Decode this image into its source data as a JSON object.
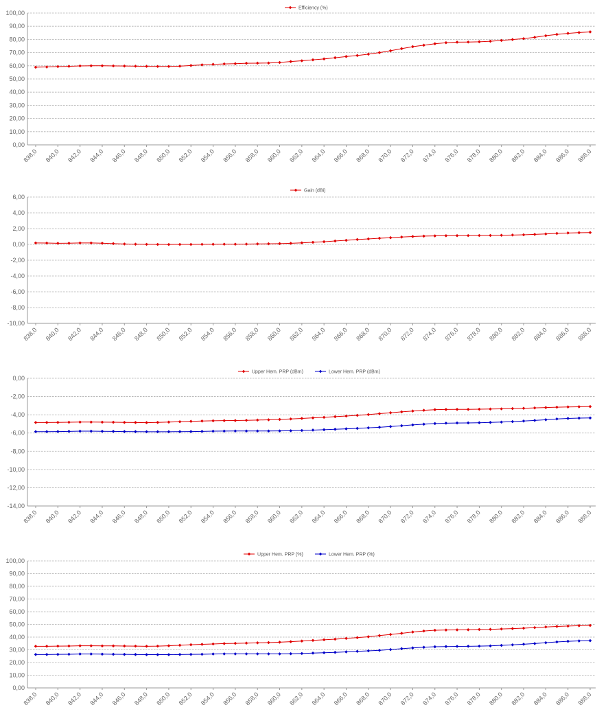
{
  "charts": {
    "chart_1": {
      "legend": [
        "Efficiency (%)"
      ]
    },
    "chart_2": {
      "legend": [
        "Gain (dBi)"
      ]
    },
    "chart_3": {
      "legend": [
        "Upper Hem. PRP (dBm)",
        "Lower Hem. PRP (dBm)"
      ]
    },
    "chart_4": {
      "legend": [
        "Upper Hem. PRP (%)",
        "Lower Hem. PRP (%)"
      ]
    }
  },
  "colors": {
    "red": "#e00000",
    "blue": "#0000c8"
  },
  "chart_data": [
    {
      "type": "line",
      "title": "",
      "x_tick_labels": [
        "838,0",
        "840,0",
        "842,0",
        "844,0",
        "846,0",
        "848,0",
        "850,0",
        "852,0",
        "854,0",
        "856,0",
        "858,0",
        "860,0",
        "862,0",
        "864,0",
        "866,0",
        "868,0",
        "870,0",
        "872,0",
        "874,0",
        "876,0",
        "878,0",
        "880,0",
        "882,0",
        "884,0",
        "886,0",
        "888,0"
      ],
      "y_tick_labels": [
        "0,00",
        "10,00",
        "20,00",
        "30,00",
        "40,00",
        "50,00",
        "60,00",
        "70,00",
        "80,00",
        "90,00",
        "100,00"
      ],
      "ylim": [
        0,
        100
      ],
      "xlim": [
        838,
        888
      ],
      "grid": true,
      "legend_position": "top-center",
      "x": [
        838,
        839,
        840,
        841,
        842,
        843,
        844,
        845,
        846,
        847,
        848,
        849,
        850,
        851,
        852,
        853,
        854,
        855,
        856,
        857,
        858,
        859,
        860,
        861,
        862,
        863,
        864,
        865,
        866,
        867,
        868,
        869,
        870,
        871,
        872,
        873,
        874,
        875,
        876,
        877,
        878,
        879,
        880,
        881,
        882,
        883,
        884,
        885,
        886,
        887,
        888
      ],
      "series": [
        {
          "name": "Efficiency (%)",
          "color": "red",
          "values": [
            58.9,
            59.1,
            59.4,
            59.6,
            59.9,
            60.0,
            60.0,
            59.9,
            59.8,
            59.7,
            59.6,
            59.5,
            59.5,
            59.7,
            60.2,
            60.7,
            61.1,
            61.4,
            61.6,
            61.9,
            62.0,
            62.1,
            62.5,
            63.2,
            63.8,
            64.5,
            65.2,
            66.1,
            67.0,
            67.8,
            68.8,
            70.0,
            71.4,
            73.0,
            74.5,
            75.6,
            76.7,
            77.5,
            77.9,
            78.0,
            78.2,
            78.6,
            79.2,
            79.9,
            80.6,
            81.6,
            82.8,
            83.8,
            84.6,
            85.2,
            85.7
          ]
        }
      ]
    },
    {
      "type": "line",
      "title": "",
      "x_tick_labels": [
        "838,0",
        "840,0",
        "842,0",
        "844,0",
        "846,0",
        "848,0",
        "850,0",
        "852,0",
        "854,0",
        "856,0",
        "858,0",
        "860,0",
        "862,0",
        "864,0",
        "866,0",
        "868,0",
        "870,0",
        "872,0",
        "874,0",
        "876,0",
        "878,0",
        "880,0",
        "882,0",
        "884,0",
        "886,0",
        "888,0"
      ],
      "y_tick_labels": [
        "-10,00",
        "-8,00",
        "-6,00",
        "-4,00",
        "-2,00",
        "0,00",
        "2,00",
        "4,00",
        "6,00"
      ],
      "ylim": [
        -10,
        6
      ],
      "xlim": [
        838,
        888
      ],
      "grid": true,
      "legend_position": "top-center",
      "x": [
        838,
        839,
        840,
        841,
        842,
        843,
        844,
        845,
        846,
        847,
        848,
        849,
        850,
        851,
        852,
        853,
        854,
        855,
        856,
        857,
        858,
        859,
        860,
        861,
        862,
        863,
        864,
        865,
        866,
        867,
        868,
        869,
        870,
        871,
        872,
        873,
        874,
        875,
        876,
        877,
        878,
        879,
        880,
        881,
        882,
        883,
        884,
        885,
        886,
        887,
        888
      ],
      "series": [
        {
          "name": "Gain (dBi)",
          "color": "red",
          "values": [
            0.18,
            0.17,
            0.14,
            0.15,
            0.18,
            0.18,
            0.15,
            0.1,
            0.05,
            0.03,
            0.01,
            0.0,
            -0.01,
            0.0,
            0.0,
            0.01,
            0.02,
            0.03,
            0.03,
            0.04,
            0.06,
            0.08,
            0.1,
            0.14,
            0.2,
            0.27,
            0.34,
            0.43,
            0.52,
            0.62,
            0.7,
            0.78,
            0.85,
            0.93,
            1.0,
            1.05,
            1.08,
            1.1,
            1.11,
            1.12,
            1.13,
            1.14,
            1.16,
            1.19,
            1.22,
            1.27,
            1.33,
            1.4,
            1.45,
            1.48,
            1.5
          ]
        }
      ]
    },
    {
      "type": "line",
      "title": "",
      "x_tick_labels": [
        "838,0",
        "840,0",
        "842,0",
        "844,0",
        "846,0",
        "848,0",
        "850,0",
        "852,0",
        "854,0",
        "856,0",
        "858,0",
        "860,0",
        "862,0",
        "864,0",
        "866,0",
        "868,0",
        "870,0",
        "872,0",
        "874,0",
        "876,0",
        "878,0",
        "880,0",
        "882,0",
        "884,0",
        "886,0",
        "888,0"
      ],
      "y_tick_labels": [
        "-14,00",
        "-12,00",
        "-10,00",
        "-8,00",
        "-6,00",
        "-4,00",
        "-2,00",
        "0,00"
      ],
      "ylim": [
        -14,
        0
      ],
      "xlim": [
        838,
        888
      ],
      "grid": true,
      "legend_position": "top-center",
      "x": [
        838,
        839,
        840,
        841,
        842,
        843,
        844,
        845,
        846,
        847,
        848,
        849,
        850,
        851,
        852,
        853,
        854,
        855,
        856,
        857,
        858,
        859,
        860,
        861,
        862,
        863,
        864,
        865,
        866,
        867,
        868,
        869,
        870,
        871,
        872,
        873,
        874,
        875,
        876,
        877,
        878,
        879,
        880,
        881,
        882,
        883,
        884,
        885,
        886,
        887,
        888
      ],
      "series": [
        {
          "name": "Upper Hem. PRP (dBm)",
          "color": "red",
          "values": [
            -4.85,
            -4.85,
            -4.84,
            -4.82,
            -4.8,
            -4.8,
            -4.81,
            -4.82,
            -4.84,
            -4.85,
            -4.86,
            -4.84,
            -4.8,
            -4.76,
            -4.72,
            -4.69,
            -4.66,
            -4.64,
            -4.63,
            -4.61,
            -4.58,
            -4.55,
            -4.51,
            -4.46,
            -4.4,
            -4.34,
            -4.28,
            -4.21,
            -4.14,
            -4.06,
            -3.98,
            -3.88,
            -3.78,
            -3.68,
            -3.59,
            -3.51,
            -3.44,
            -3.42,
            -3.41,
            -3.41,
            -3.39,
            -3.37,
            -3.35,
            -3.32,
            -3.29,
            -3.25,
            -3.21,
            -3.17,
            -3.14,
            -3.12,
            -3.1
          ]
        },
        {
          "name": "Lower Hem. PRP (dBm)",
          "color": "blue",
          "values": [
            -5.85,
            -5.85,
            -5.84,
            -5.82,
            -5.8,
            -5.8,
            -5.81,
            -5.82,
            -5.84,
            -5.85,
            -5.86,
            -5.86,
            -5.86,
            -5.85,
            -5.84,
            -5.82,
            -5.8,
            -5.79,
            -5.78,
            -5.78,
            -5.78,
            -5.78,
            -5.77,
            -5.75,
            -5.72,
            -5.68,
            -5.64,
            -5.59,
            -5.54,
            -5.49,
            -5.43,
            -5.37,
            -5.29,
            -5.2,
            -5.11,
            -5.03,
            -4.96,
            -4.92,
            -4.9,
            -4.89,
            -4.87,
            -4.84,
            -4.8,
            -4.75,
            -4.69,
            -4.62,
            -4.54,
            -4.46,
            -4.4,
            -4.37,
            -4.35
          ]
        }
      ]
    },
    {
      "type": "line",
      "title": "",
      "x_tick_labels": [
        "838,0",
        "840,0",
        "842,0",
        "844,0",
        "846,0",
        "848,0",
        "850,0",
        "852,0",
        "854,0",
        "856,0",
        "858,0",
        "860,0",
        "862,0",
        "864,0",
        "866,0",
        "868,0",
        "870,0",
        "872,0",
        "874,0",
        "876,0",
        "878,0",
        "880,0",
        "882,0",
        "884,0",
        "886,0",
        "888,0"
      ],
      "y_tick_labels": [
        "0,00",
        "10,00",
        "20,00",
        "30,00",
        "40,00",
        "50,00",
        "60,00",
        "70,00",
        "80,00",
        "90,00",
        "100,00"
      ],
      "ylim": [
        0,
        100
      ],
      "xlim": [
        838,
        888
      ],
      "grid": true,
      "legend_position": "top-center",
      "x": [
        838,
        839,
        840,
        841,
        842,
        843,
        844,
        845,
        846,
        847,
        848,
        849,
        850,
        851,
        852,
        853,
        854,
        855,
        856,
        857,
        858,
        859,
        860,
        861,
        862,
        863,
        864,
        865,
        866,
        867,
        868,
        869,
        870,
        871,
        872,
        873,
        874,
        875,
        876,
        877,
        878,
        879,
        880,
        881,
        882,
        883,
        884,
        885,
        886,
        887,
        888
      ],
      "series": [
        {
          "name": "Upper Hem. PRP (%)",
          "color": "red",
          "values": [
            32.8,
            32.8,
            32.9,
            33.0,
            33.2,
            33.2,
            33.1,
            33.1,
            33.0,
            32.9,
            32.8,
            32.9,
            33.2,
            33.6,
            34.0,
            34.3,
            34.6,
            34.9,
            35.1,
            35.3,
            35.5,
            35.7,
            36.0,
            36.4,
            36.9,
            37.4,
            37.9,
            38.4,
            39.0,
            39.6,
            40.3,
            41.2,
            42.1,
            43.0,
            44.0,
            44.8,
            45.4,
            45.6,
            45.7,
            45.8,
            46.0,
            46.1,
            46.4,
            46.7,
            47.0,
            47.5,
            48.0,
            48.4,
            48.7,
            49.0,
            49.2
          ]
        },
        {
          "name": "Lower Hem. PRP (%)",
          "color": "blue",
          "values": [
            26.3,
            26.3,
            26.4,
            26.5,
            26.7,
            26.7,
            26.6,
            26.5,
            26.4,
            26.3,
            26.2,
            26.2,
            26.2,
            26.3,
            26.4,
            26.5,
            26.7,
            26.8,
            26.8,
            26.8,
            26.8,
            26.8,
            26.8,
            26.9,
            27.1,
            27.4,
            27.7,
            28.0,
            28.4,
            28.8,
            29.2,
            29.6,
            30.2,
            30.9,
            31.5,
            32.0,
            32.4,
            32.6,
            32.7,
            32.8,
            32.9,
            33.1,
            33.5,
            33.9,
            34.4,
            34.9,
            35.6,
            36.2,
            36.7,
            37.0,
            37.2
          ]
        }
      ]
    }
  ]
}
